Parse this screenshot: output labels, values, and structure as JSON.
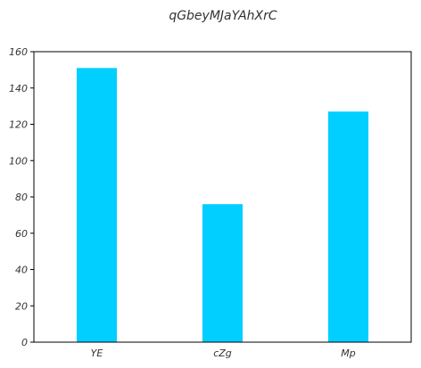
{
  "chart_data": {
    "type": "bar",
    "title": "qGbeyMJaYAhXrC",
    "xlabel": "",
    "ylabel": "",
    "categories": [
      "YE",
      "cZg",
      "Mp"
    ],
    "values": [
      151,
      76,
      127
    ],
    "ylim": [
      0,
      160
    ],
    "yticks": [
      0,
      20,
      40,
      60,
      80,
      100,
      120,
      140,
      160
    ],
    "grid": false,
    "legend": false,
    "colors": {
      "bar": "#00CFFF",
      "axis": "#000000",
      "text": "#333333"
    }
  }
}
